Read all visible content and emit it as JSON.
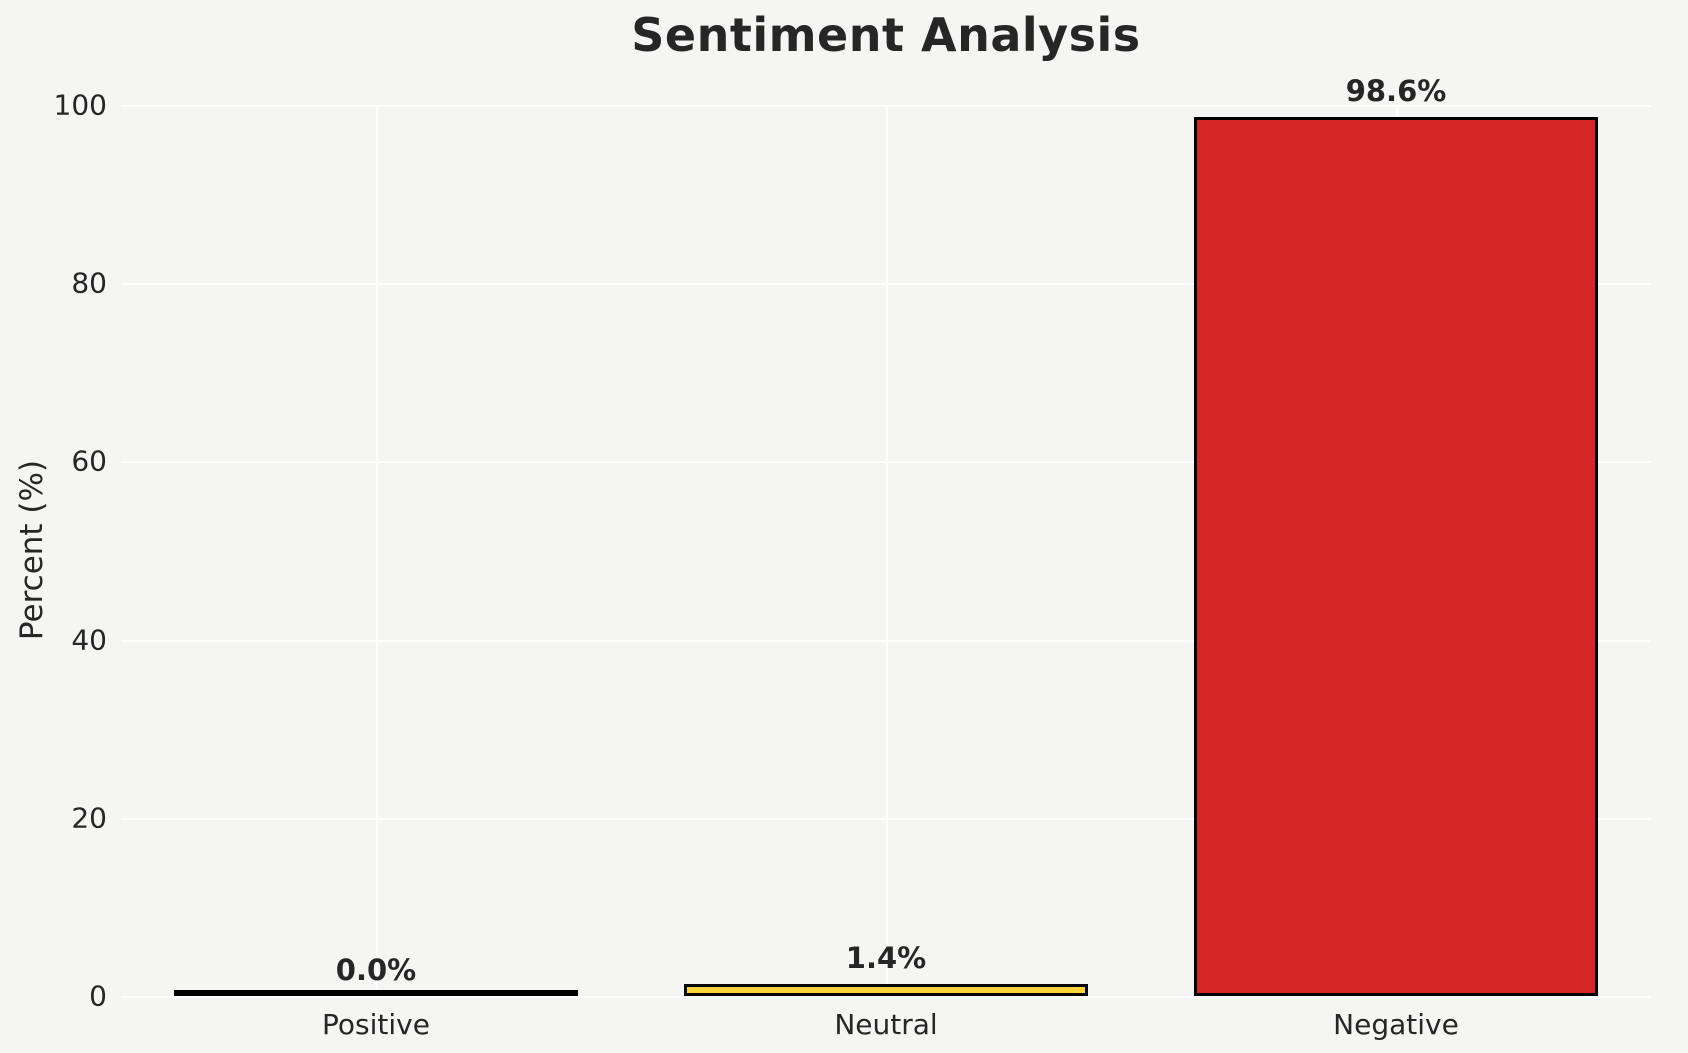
{
  "chart_data": {
    "type": "bar",
    "title": "Sentiment Analysis",
    "ylabel": "Percent (%)",
    "xlabel": "",
    "categories": [
      "Positive",
      "Neutral",
      "Negative"
    ],
    "values": [
      0.0,
      1.4,
      98.6
    ],
    "value_labels": [
      "0.0%",
      "1.4%",
      "98.6%"
    ],
    "bar_colors": [
      null,
      "#FFD43B",
      "#D62728"
    ],
    "bar_edge_color": "#000000",
    "ylim": [
      0,
      100
    ],
    "yticks": [
      "0",
      "20",
      "40",
      "60",
      "80",
      "100"
    ],
    "ytick_values": [
      0,
      20,
      40,
      60,
      80,
      100
    ],
    "grid": "on",
    "grid_color": "#ffffff",
    "background_color": "#f5f5f4",
    "text_color": "#262626",
    "legend": "none"
  }
}
